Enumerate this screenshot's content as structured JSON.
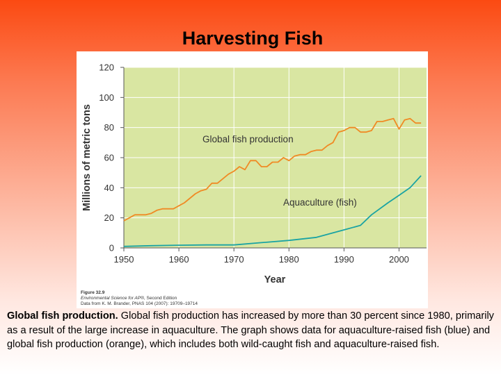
{
  "slide": {
    "title": "Harvesting Fish"
  },
  "figure": {
    "credit": {
      "figure_number": "Figure 32.9",
      "book_title": "Environmental Science for AP®",
      "edition": ", Second Edition",
      "source": "Data from K. M. Brander, PNAS 104 (2007): 19709–19714"
    }
  },
  "caption": {
    "heading": "Global fish production.",
    "text": " Global fish production has increased by more than 30 percent since 1980, primarily as a result of the large increase in aquaculture. The graph shows data for aquaculture-raised fish (blue) and global fish production (orange), which includes both wild-caught fish and aquaculture-raised fish."
  },
  "colors": {
    "plot_background": "#d9e6a2",
    "gridline": "#ffffff",
    "global_series": "#f08a24",
    "aquaculture_series": "#1aa3a3"
  },
  "chart_data": {
    "type": "line",
    "title": "",
    "xlabel": "Year",
    "ylabel": "Millions of metric tons",
    "xlim": [
      1950,
      2005
    ],
    "ylim": [
      0,
      120
    ],
    "x_ticks": [
      1950,
      1960,
      1970,
      1980,
      1990,
      2000
    ],
    "y_ticks": [
      0,
      20,
      40,
      60,
      80,
      100,
      120
    ],
    "grid": true,
    "series": [
      {
        "name": "Global fish production",
        "x": [
          1950,
          1951,
          1952,
          1953,
          1954,
          1955,
          1956,
          1957,
          1958,
          1959,
          1960,
          1961,
          1962,
          1963,
          1964,
          1965,
          1966,
          1967,
          1968,
          1969,
          1970,
          1971,
          1972,
          1973,
          1974,
          1975,
          1976,
          1977,
          1978,
          1979,
          1980,
          1981,
          1982,
          1983,
          1984,
          1985,
          1986,
          1987,
          1988,
          1989,
          1990,
          1991,
          1992,
          1993,
          1994,
          1995,
          1996,
          1997,
          1998,
          1999,
          2000,
          2001,
          2002,
          2003,
          2004
        ],
        "y": [
          18,
          20,
          22,
          22,
          22,
          23,
          25,
          26,
          26,
          26,
          28,
          30,
          33,
          36,
          38,
          39,
          43,
          43,
          46,
          49,
          51,
          54,
          52,
          58,
          58,
          54,
          54,
          57,
          57,
          60,
          58,
          61,
          62,
          62,
          64,
          65,
          65,
          68,
          70,
          77,
          78,
          80,
          80,
          77,
          77,
          78,
          84,
          84,
          85,
          86,
          79,
          85,
          86,
          83,
          83
        ]
      },
      {
        "name": "Aquaculture (fish)",
        "x": [
          1950,
          1955,
          1960,
          1965,
          1970,
          1975,
          1980,
          1985,
          1990,
          1993,
          1995,
          1998,
          2000,
          2002,
          2004
        ],
        "y": [
          1,
          1.5,
          1.8,
          2,
          2,
          3.5,
          5,
          7,
          12,
          15,
          22,
          30,
          35,
          40,
          48
        ]
      }
    ]
  }
}
